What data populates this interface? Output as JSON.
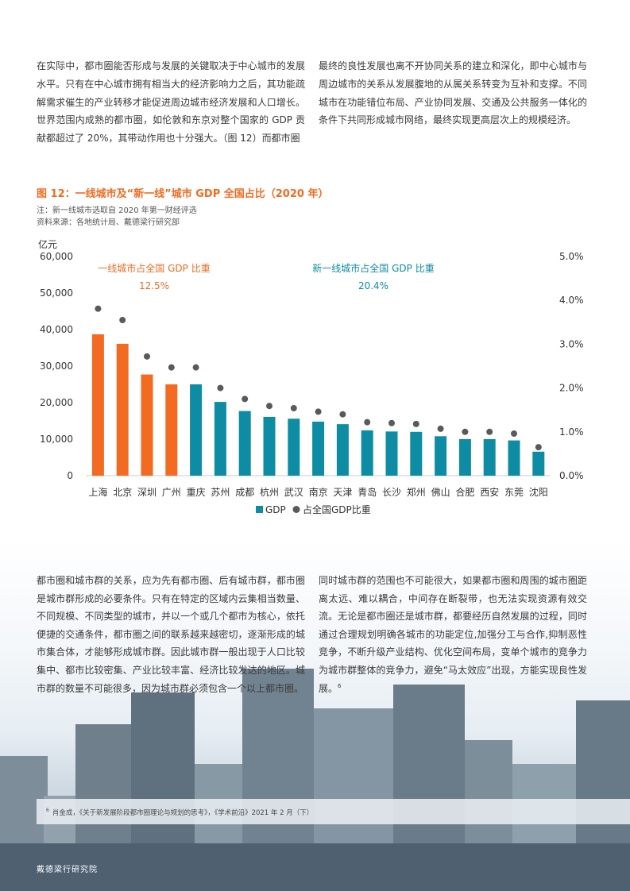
{
  "paragraphs": {
    "top_left": "在实际中，都市圈能否形成与发展的关键取决于中心城市的发展水平。只有在中心城市拥有相当大的经济影响力之后，其功能疏解需求催生的产业转移才能促进周边城市经济发展和人口增长。世界范围内成熟的都市圈，如伦敦和东京对整个国家的 GDP 贡献都超过了 20%，其带动作用也十分强大。（图 12）而都市圈",
    "top_right": "最终的良性发展也离不开协同关系的建立和深化，即中心城市与周边城市的关系从发展腹地的从属关系转变为互补和支撑。不同城市在功能错位布局、产业协同发展、交通及公共服务一体化的条件下共同形成城市网络，最终实现更高层次上的规模经济。",
    "bottom_left": "都市圈和城市群的关系，应为先有都市圈、后有城市群，都市圈是城市群形成的必要条件。只有在特定的区域内云集相当数量、不同规模、不同类型的城市，并以一个或几个都市为核心，依托便捷的交通条件，都市圈之间的联系越来越密切，逐渐形成的城市集合体，才能够形成城市群。因此城市群一般出现于人口比较集中、都市比较密集、产业比较丰富、经济比较发达的地区。城市群的数量不可能很多，因为城市群必须包含一个以上都市圈。",
    "bottom_right": "同时城市群的范围也不可能很大，如果都市圈和周围的城市圈距离太远、难以耦合，中间存在断裂带，也无法实现资源有效交流。无论是都市圈还是城市群，都要经历自然发展的过程，同时通过合理规划明确各城市的功能定位,加强分工与合作,抑制恶性竞争，不断升级产业结构、优化空间布局，变单个城市的竞争力为城市群整体的竞争力，避免“马太效应”出现，方能实现良性发展。",
    "bottom_right_sup": "6"
  },
  "figure": {
    "title": "图 12：一线城市及“新一线”城市 GDP 全国占比（2020 年）",
    "note": "注：新一线城市选取自 2020 年第一财经评选",
    "source": "资料来源：各地统计局、戴德梁行研究部"
  },
  "chart_data": {
    "type": "bar",
    "ylabel": "亿元",
    "ylim": [
      0,
      60000
    ],
    "y_ticks": [
      "0",
      "10,000",
      "20,000",
      "30,000",
      "40,000",
      "50,000",
      "60,000"
    ],
    "y2lim": [
      0,
      5.0
    ],
    "y2_ticks": [
      "0.0%",
      "1.0%",
      "2.0%",
      "3.0%",
      "4.0%",
      "5.0%"
    ],
    "categories": [
      "上海",
      "北京",
      "深圳",
      "广州",
      "重庆",
      "苏州",
      "成都",
      "杭州",
      "武汉",
      "南京",
      "天津",
      "青岛",
      "长沙",
      "郑州",
      "佛山",
      "合肥",
      "西安",
      "东莞",
      "沈阳"
    ],
    "series": [
      {
        "name": "GDP",
        "kind": "bar",
        "axis": "left",
        "values": [
          38700,
          36100,
          27700,
          25000,
          25000,
          20200,
          17700,
          16100,
          15600,
          14800,
          14100,
          12400,
          12100,
          12000,
          10800,
          10000,
          10000,
          9650,
          6570
        ]
      },
      {
        "name": "占全国GDP比重",
        "kind": "scatter",
        "axis": "right",
        "values": [
          3.81,
          3.55,
          2.72,
          2.47,
          2.47,
          2.0,
          1.75,
          1.59,
          1.54,
          1.46,
          1.4,
          1.22,
          1.2,
          1.18,
          1.07,
          1.0,
          1.0,
          0.96,
          0.65
        ]
      }
    ],
    "tier1_count": 4,
    "colors": {
      "tier1": "#f26b21",
      "new_tier1": "#0e8ca3",
      "dot": "#5a5a5a",
      "axis_text": "#333333"
    },
    "annotations": [
      {
        "label": "一线城市占全国 GDP 比重",
        "value": "12.5%",
        "color": "#f26b21",
        "group": "tier1"
      },
      {
        "label": "新一线城市占全国 GDP 比重",
        "value": "20.4%",
        "color": "#0e8ca3",
        "group": "new_tier1"
      }
    ],
    "legend": {
      "placement": "bottom-center",
      "items": [
        "GDP",
        "占全国GDP比重"
      ]
    }
  },
  "footnote": {
    "num": "6",
    "text": "肖金成，《关于新发展阶段都市圈理论与规划的思考》，《学术前沿》2021 年 2 月（下）"
  },
  "footer": {
    "brand": "戴德梁行研究院"
  }
}
